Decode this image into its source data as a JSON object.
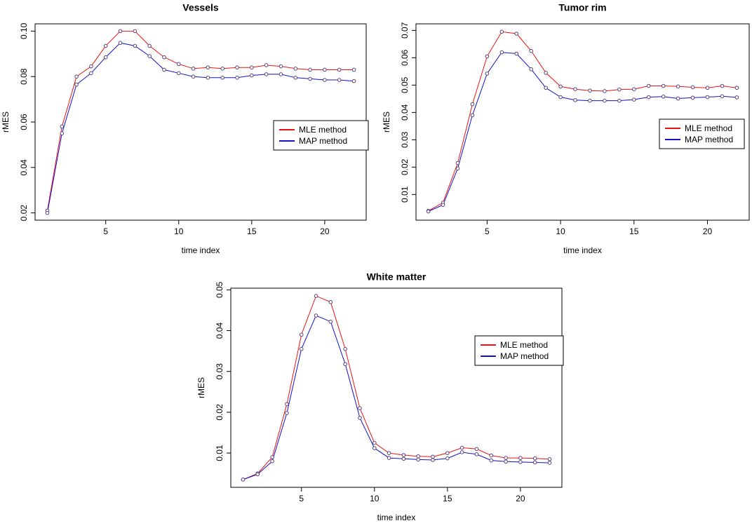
{
  "figure": {
    "colors": {
      "mle": "#ee1111",
      "map": "#1111cc",
      "marker": "#5a3f7a",
      "axis": "#000000"
    }
  },
  "chart_data": [
    {
      "id": "vessels",
      "type": "line",
      "title": "Vessels",
      "xlabel": "time index",
      "ylabel": "rMES",
      "xlim": [
        0.16,
        22.84
      ],
      "ylim": [
        0.0168,
        0.1032
      ],
      "xticks": [
        5,
        10,
        15,
        20
      ],
      "yticks": [
        0.02,
        0.04,
        0.06,
        0.08,
        0.1
      ],
      "ytick_labels": [
        "0.02",
        "0.04",
        "0.06",
        "0.08",
        "0.10"
      ],
      "legend_position": "right-middle",
      "x": [
        1,
        2,
        3,
        4,
        5,
        6,
        7,
        8,
        9,
        10,
        11,
        12,
        13,
        14,
        15,
        16,
        17,
        18,
        19,
        20,
        21,
        22
      ],
      "series": [
        {
          "name": "MLE method",
          "color": "#ee1111",
          "values": [
            0.021,
            0.058,
            0.08,
            0.0845,
            0.0935,
            0.1,
            0.1,
            0.0935,
            0.0885,
            0.0855,
            0.0835,
            0.084,
            0.0835,
            0.084,
            0.084,
            0.085,
            0.0845,
            0.0835,
            0.083,
            0.083,
            0.083,
            0.083
          ]
        },
        {
          "name": "MAP method",
          "color": "#1111cc",
          "values": [
            0.02,
            0.055,
            0.0765,
            0.0815,
            0.0885,
            0.0948,
            0.0935,
            0.089,
            0.083,
            0.0815,
            0.08,
            0.0795,
            0.0795,
            0.0795,
            0.0805,
            0.081,
            0.081,
            0.0795,
            0.079,
            0.0785,
            0.0785,
            0.078
          ]
        }
      ]
    },
    {
      "id": "tumor-rim",
      "type": "line",
      "title": "Tumor rim",
      "xlabel": "time index",
      "ylabel": "rMES",
      "xlim": [
        0.16,
        22.84
      ],
      "ylim": [
        0.0006,
        0.0724
      ],
      "xticks": [
        5,
        10,
        15,
        20
      ],
      "yticks": [
        0.01,
        0.02,
        0.03,
        0.04,
        0.05,
        0.06,
        0.07
      ],
      "ytick_labels": [
        "0.01",
        "0.02",
        "0.03",
        "0.04",
        "0.05",
        "0.06",
        "0.07"
      ],
      "legend_position": "right-middle",
      "x": [
        1,
        2,
        3,
        4,
        5,
        6,
        7,
        8,
        9,
        10,
        11,
        12,
        13,
        14,
        15,
        16,
        17,
        18,
        19,
        20,
        21,
        22
      ],
      "series": [
        {
          "name": "MLE method",
          "color": "#ee1111",
          "values": [
            0.004,
            0.007,
            0.0215,
            0.043,
            0.0605,
            0.0695,
            0.0688,
            0.0625,
            0.0545,
            0.0495,
            0.0485,
            0.048,
            0.0478,
            0.0484,
            0.0485,
            0.0497,
            0.0497,
            0.0495,
            0.0492,
            0.049,
            0.0497,
            0.049
          ]
        },
        {
          "name": "MAP method",
          "color": "#1111cc",
          "values": [
            0.0038,
            0.0062,
            0.0195,
            0.039,
            0.0542,
            0.062,
            0.0615,
            0.0558,
            0.049,
            0.0456,
            0.0445,
            0.0443,
            0.0443,
            0.0443,
            0.0447,
            0.0456,
            0.0458,
            0.0451,
            0.0454,
            0.0456,
            0.0459,
            0.0455
          ]
        }
      ]
    },
    {
      "id": "white-matter",
      "type": "line",
      "title": "White matter",
      "xlabel": "time index",
      "ylabel": "rMES",
      "xlim": [
        0.16,
        22.84
      ],
      "ylim": [
        0.0016,
        0.0504
      ],
      "xticks": [
        5,
        10,
        15,
        20
      ],
      "yticks": [
        0.01,
        0.02,
        0.03,
        0.04,
        0.05
      ],
      "ytick_labels": [
        "0.01",
        "0.02",
        "0.03",
        "0.04",
        "0.05"
      ],
      "legend_position": "top-right",
      "x": [
        1,
        2,
        3,
        4,
        5,
        6,
        7,
        8,
        9,
        10,
        11,
        12,
        13,
        14,
        15,
        16,
        17,
        18,
        19,
        20,
        21,
        22
      ],
      "series": [
        {
          "name": "MLE method",
          "color": "#ee1111",
          "values": [
            0.0035,
            0.005,
            0.009,
            0.022,
            0.039,
            0.0485,
            0.047,
            0.0355,
            0.021,
            0.0125,
            0.01,
            0.0095,
            0.0092,
            0.0091,
            0.01,
            0.0113,
            0.011,
            0.0094,
            0.0088,
            0.0088,
            0.0087,
            0.0085
          ]
        },
        {
          "name": "MAP method",
          "color": "#1111cc",
          "values": [
            0.0035,
            0.0048,
            0.008,
            0.0198,
            0.0355,
            0.0437,
            0.0422,
            0.0318,
            0.0186,
            0.0112,
            0.0088,
            0.0086,
            0.0084,
            0.0083,
            0.0087,
            0.0102,
            0.0097,
            0.0082,
            0.0079,
            0.0078,
            0.0077,
            0.0076
          ]
        }
      ]
    }
  ]
}
